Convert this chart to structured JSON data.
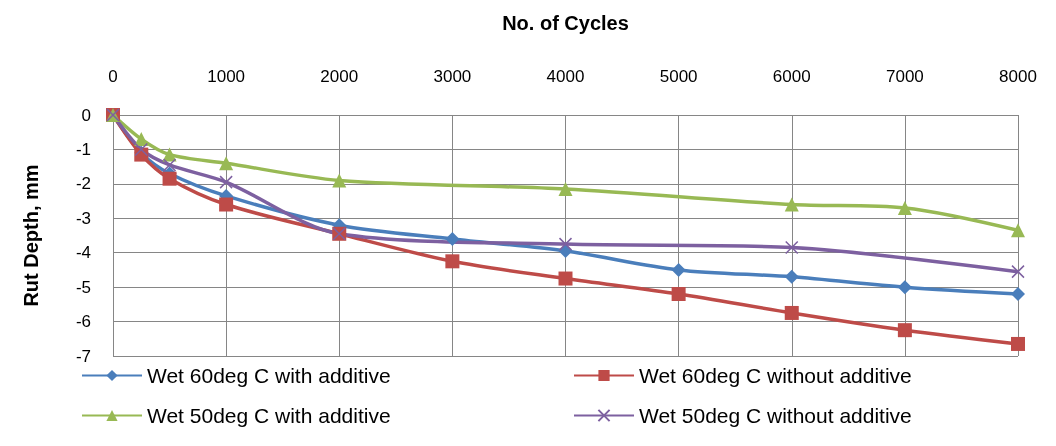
{
  "chart_data": {
    "type": "line",
    "xlabel": "No. of Cycles",
    "ylabel": "Rut Depth, mm",
    "xlim": [
      0,
      8000
    ],
    "xticks": [
      0,
      1000,
      2000,
      3000,
      4000,
      5000,
      6000,
      7000,
      8000
    ],
    "ylim": [
      -7,
      0
    ],
    "yticks": [
      -7,
      -6,
      -5,
      -4,
      -3,
      -2,
      -1,
      0
    ],
    "grid": true,
    "legend": "bottom",
    "series": [
      {
        "name": "Wet 60deg C with additive",
        "color": "#4a7ebb",
        "marker": "diamond",
        "x": [
          0,
          250,
          500,
          1000,
          2000,
          3000,
          4000,
          5000,
          6000,
          7000,
          8000
        ],
        "values": [
          0,
          -1.1,
          -1.7,
          -2.35,
          -3.2,
          -3.6,
          -3.95,
          -4.5,
          -4.7,
          -5.0,
          -5.2
        ]
      },
      {
        "name": "Wet 60deg C without additive",
        "color": "#be4b48",
        "marker": "square",
        "x": [
          0,
          250,
          500,
          1000,
          2000,
          3000,
          4000,
          5000,
          6000,
          7000,
          8000
        ],
        "values": [
          0,
          -1.15,
          -1.85,
          -2.6,
          -3.45,
          -4.25,
          -4.75,
          -5.2,
          -5.75,
          -6.25,
          -6.65
        ]
      },
      {
        "name": "Wet 50deg C with additive",
        "color": "#98b954",
        "marker": "triangle",
        "x": [
          0,
          250,
          500,
          1000,
          2000,
          4000,
          6000,
          7000,
          8000
        ],
        "values": [
          0,
          -0.7,
          -1.15,
          -1.4,
          -1.9,
          -2.15,
          -2.6,
          -2.7,
          -3.35
        ]
      },
      {
        "name": "Wet 50deg C without additive",
        "color": "#7d60a0",
        "marker": "cross",
        "x": [
          0,
          250,
          500,
          1000,
          2000,
          4000,
          6000,
          8000
        ],
        "values": [
          0,
          -1.0,
          -1.45,
          -1.95,
          -3.45,
          -3.75,
          -3.85,
          -4.55
        ]
      }
    ]
  }
}
